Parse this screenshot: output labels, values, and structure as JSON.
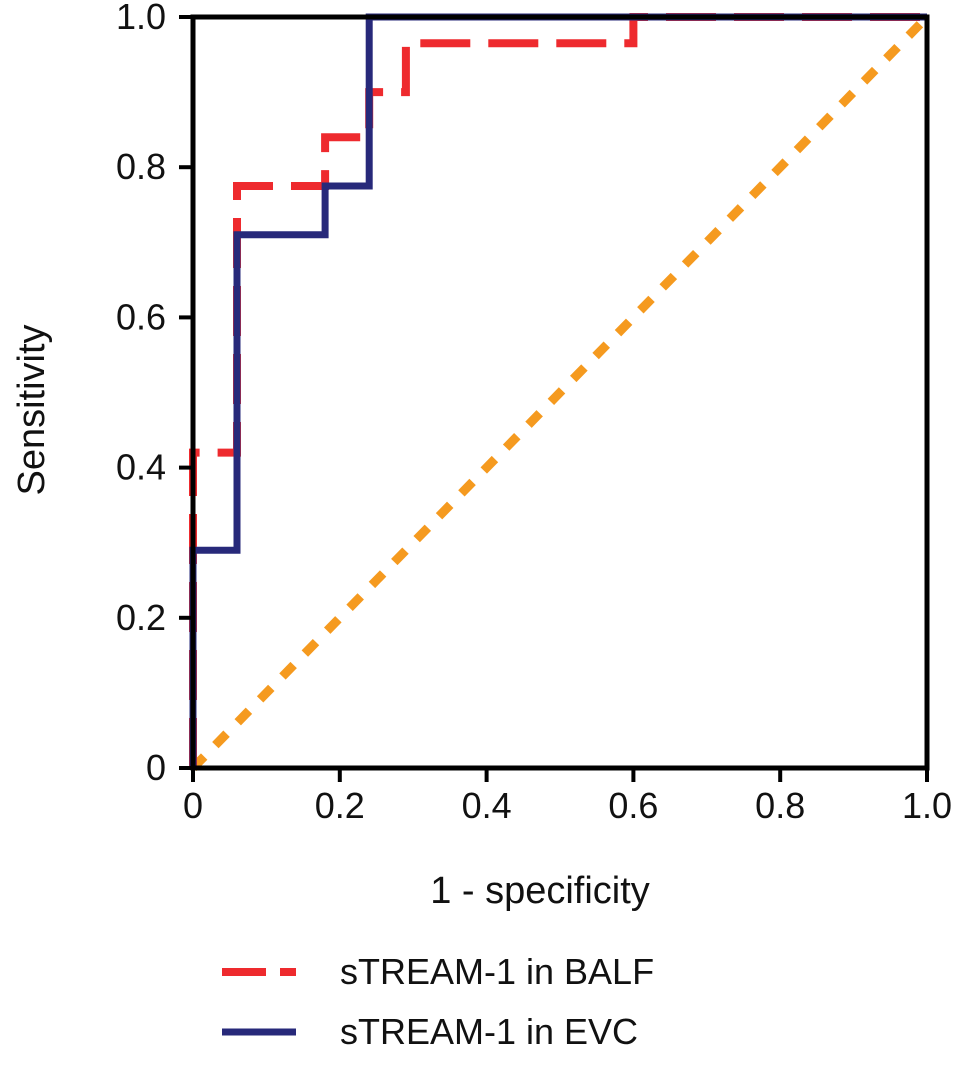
{
  "chart_data": {
    "type": "line",
    "title": "",
    "xlabel": "1 - specificity",
    "ylabel": "Sensitivity",
    "xlim": [
      0,
      1
    ],
    "ylim": [
      0,
      1
    ],
    "x_ticks": [
      "0",
      "0.2",
      "0.4",
      "0.6",
      "0.8",
      "1.0"
    ],
    "y_ticks": [
      "0",
      "0.2",
      "0.4",
      "0.6",
      "0.8",
      "1.0"
    ],
    "grid": false,
    "legend_position": "bottom",
    "series": [
      {
        "name": "sTREAM-1 in BALF",
        "color": "#ee2a2e",
        "style": "dash",
        "x": [
          0,
          0,
          0.04,
          0.06,
          0.06,
          0.18,
          0.18,
          0.24,
          0.24,
          0.29,
          0.29,
          0.6,
          0.6,
          1.0
        ],
        "y": [
          0,
          0.42,
          0.42,
          0.42,
          0.775,
          0.775,
          0.84,
          0.84,
          0.9,
          0.9,
          0.965,
          0.965,
          1.0,
          1.0
        ]
      },
      {
        "name": "sTREAM-1 in EVC",
        "color": "#27297a",
        "style": "solid",
        "x": [
          0,
          0,
          0.06,
          0.06,
          0.18,
          0.18,
          0.24,
          0.24,
          1.0
        ],
        "y": [
          0,
          0.29,
          0.29,
          0.71,
          0.71,
          0.775,
          0.775,
          1.0,
          1.0
        ]
      },
      {
        "name": "",
        "color": "#f59a1f",
        "style": "dot",
        "x": [
          0,
          1
        ],
        "y": [
          0,
          1
        ]
      }
    ]
  }
}
